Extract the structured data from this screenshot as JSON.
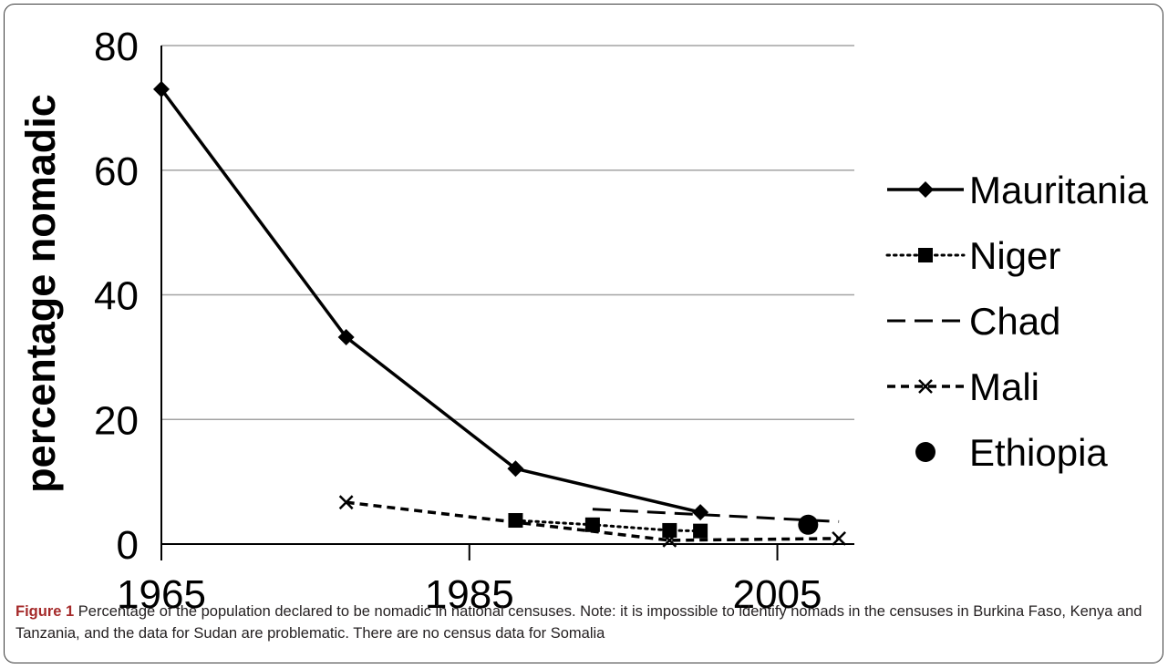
{
  "chart_data": {
    "type": "line",
    "title": "",
    "xlabel": "",
    "ylabel": "percentage nomadic",
    "xlim": [
      1965,
      2010
    ],
    "ylim": [
      0,
      80
    ],
    "xticks": [
      1965,
      1985,
      2005
    ],
    "yticks": [
      0,
      20,
      40,
      60,
      80
    ],
    "grid": "horizontal",
    "legend_position": "right",
    "series": [
      {
        "name": "Mauritania",
        "line": "solid",
        "marker": "diamond",
        "points": [
          [
            1965,
            73.0
          ],
          [
            1977,
            33.2
          ],
          [
            1988,
            12.1
          ],
          [
            2000,
            5.1
          ]
        ]
      },
      {
        "name": "Niger",
        "line": "dotted",
        "marker": "square",
        "points": [
          [
            1988,
            3.8
          ],
          [
            1993,
            3.1
          ],
          [
            1998,
            2.2
          ],
          [
            2000,
            2.1
          ]
        ]
      },
      {
        "name": "Chad",
        "line": "dashed",
        "marker": "none",
        "points": [
          [
            1993,
            5.6
          ],
          [
            2009,
            3.6
          ]
        ]
      },
      {
        "name": "Mali",
        "line": "short-dashed",
        "marker": "x",
        "points": [
          [
            1977,
            6.7
          ],
          [
            1998,
            0.6
          ],
          [
            2009,
            0.9
          ]
        ]
      },
      {
        "name": "Ethiopia",
        "line": "none",
        "marker": "circle",
        "points": [
          [
            2007,
            3.1
          ]
        ]
      }
    ]
  },
  "caption": {
    "label": "Figure 1",
    "text": "Percentage of the population declared to be nomadic in national censuses. Note: it is impossible to identify nomads in the censuses in Burkina Faso, Kenya and Tanzania, and the data for Sudan are problematic. There are no census data for Somalia"
  }
}
